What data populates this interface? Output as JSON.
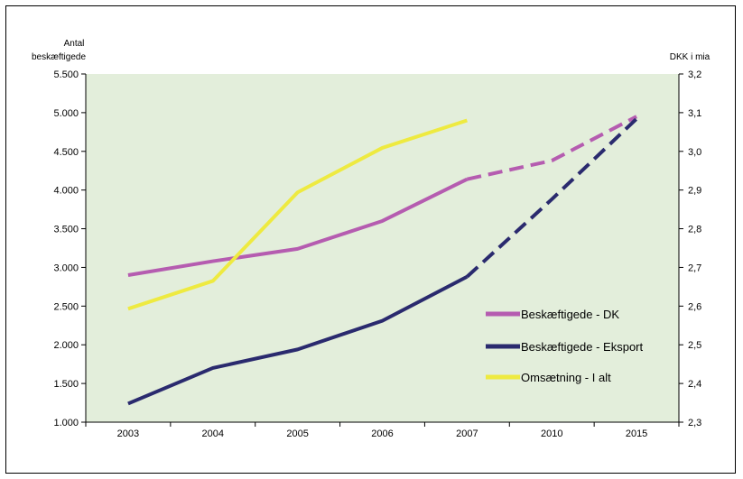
{
  "chart_data": {
    "type": "line",
    "categories": [
      "2003",
      "2004",
      "2005",
      "2006",
      "2007",
      "2010",
      "2015"
    ],
    "y_left": {
      "label_line1": "Antal",
      "label_line2": "beskæftigede",
      "min": 1000,
      "max": 5500,
      "step": 500,
      "ticks": [
        "1.000",
        "1.500",
        "2.000",
        "2.500",
        "3.000",
        "3.500",
        "4.000",
        "4.500",
        "5.000",
        "5.500"
      ]
    },
    "y_right": {
      "label": "DKK i mia",
      "min": 2.3,
      "max": 3.2,
      "step": 0.1,
      "ticks": [
        "2,3",
        "2,4",
        "2,5",
        "2,6",
        "2,7",
        "2,8",
        "2,9",
        "3,0",
        "3,1",
        "3,2"
      ]
    },
    "series": [
      {
        "name": "Beskæftigede - DK",
        "axis": "left",
        "color": "#b55cb0",
        "values": [
          2900,
          3080,
          3240,
          3600,
          4140,
          4380,
          4950
        ],
        "dashed_from_index": 4
      },
      {
        "name": "Beskæftigede - Eksport",
        "axis": "left",
        "color": "#2a2a6e",
        "values": [
          1240,
          1700,
          1940,
          2310,
          2880,
          3880,
          4920
        ],
        "dashed_from_index": 4
      },
      {
        "name": "Omsætning - I alt",
        "axis": "right",
        "color": "#eeea40",
        "values": [
          2.593,
          2.665,
          2.894,
          3.009,
          3.08,
          null,
          null
        ],
        "dashed_from_index": null
      }
    ],
    "plot_background": "#e3eedb",
    "grid": false,
    "legend": "right-inside"
  }
}
